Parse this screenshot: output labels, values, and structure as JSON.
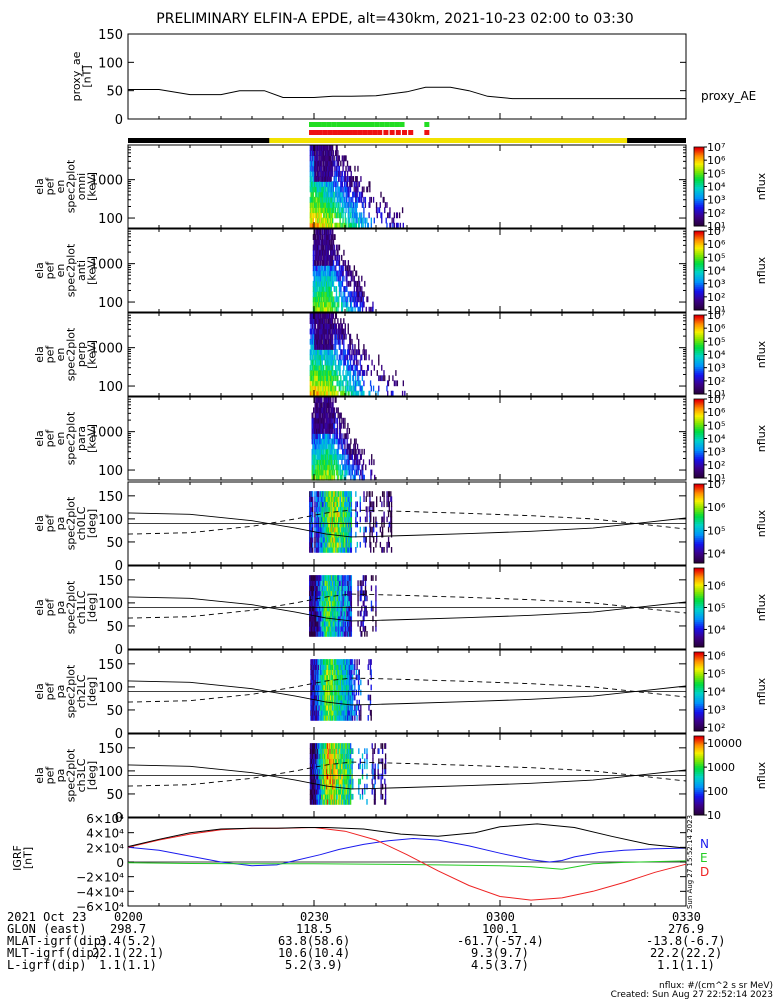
{
  "title": "PRELIMINARY ELFIN-A EPDE, alt=430km, 2021-10-23 02:00 to 03:30",
  "colors": {
    "ae_line": "#000000",
    "science_green": "#22dd22",
    "science_red": "#ee1111",
    "track_black": "#000000",
    "track_yellow": "#f2e200",
    "grf_N": "#1a1aee",
    "grf_E": "#22cc22",
    "grf_D": "#ee2222",
    "grf_total": "#000000"
  },
  "chart_data": [
    {
      "id": "proxy_ae",
      "type": "line",
      "ylabel": "proxy_ae [nT]",
      "legend": "proxy_AE",
      "ylim": [
        0,
        150
      ],
      "yticks": [
        "0",
        "50",
        "100",
        "150"
      ],
      "x_minutes": [
        0,
        5,
        10,
        15,
        18,
        22,
        25,
        30,
        33,
        36,
        40,
        45,
        48,
        52,
        55,
        58,
        62,
        68,
        75,
        90
      ],
      "values": [
        52,
        52,
        43,
        43,
        50,
        50,
        38,
        38,
        40,
        40,
        41,
        48,
        56,
        56,
        50,
        40,
        36,
        36,
        36,
        36
      ]
    },
    {
      "id": "science_zone_flags",
      "type": "scatter",
      "series": [
        {
          "name": "green",
          "x_minutes": [
            29.6,
            30.2,
            30.8,
            31.6,
            32.4,
            33.2,
            34.0,
            34.6,
            35.2,
            35.8,
            36.4,
            37.0,
            37.6,
            38.2,
            38.8,
            39.4,
            40.2,
            41.0,
            41.8,
            42.6,
            43.4,
            44.2,
            48.2
          ]
        },
        {
          "name": "red",
          "x_minutes": [
            29.6,
            30.3,
            31.0,
            31.8,
            32.6,
            33.4,
            34.2,
            35.0,
            35.8,
            36.6,
            37.4,
            38.2,
            39.0,
            39.8,
            40.6,
            41.6,
            42.6,
            43.6,
            44.6,
            45.6,
            48.2
          ]
        }
      ]
    },
    {
      "id": "orbit_track",
      "type": "bar",
      "segments": [
        {
          "from_min": 0,
          "to_min": 22.8,
          "state": "black"
        },
        {
          "from_min": 22.8,
          "to_min": 80.5,
          "state": "yellow"
        },
        {
          "from_min": 80.5,
          "to_min": 90,
          "state": "black"
        }
      ]
    },
    {
      "id": "omni",
      "type": "heatmap",
      "kind": "energy",
      "ylabel": [
        "ela",
        "pef",
        "en",
        "spec2plot",
        "omni",
        "[keV]"
      ],
      "yticks": [
        "100",
        "1000"
      ],
      "colorbar": {
        "label": "nflux",
        "ticks": [
          "10¹",
          "10²",
          "10³",
          "10⁴",
          "10⁵",
          "10⁶",
          "10⁷"
        ]
      },
      "t_start": 29.3,
      "t_end": 44.8,
      "x_minutes": [
        30,
        33,
        36,
        40,
        44
      ],
      "flux_log10": [
        6.2,
        5.4,
        4.1,
        2.8,
        1.8
      ]
    },
    {
      "id": "anti",
      "type": "heatmap",
      "kind": "energy",
      "ylabel": [
        "ela",
        "pef",
        "en",
        "spec2plot",
        "anti",
        "[keV]"
      ],
      "yticks": [
        "100",
        "1000"
      ],
      "colorbar": {
        "label": "nflux",
        "ticks": [
          "10¹",
          "10²",
          "10³",
          "10⁴",
          "10⁵",
          "10⁶",
          "10⁷"
        ]
      },
      "t_start": 29.8,
      "t_end": 39.5,
      "x_minutes": [
        30,
        32,
        34,
        36,
        39
      ],
      "flux_log10": [
        5.0,
        5.6,
        4.4,
        3.1,
        2.0
      ]
    },
    {
      "id": "perp",
      "type": "heatmap",
      "kind": "energy",
      "ylabel": [
        "ela",
        "pef",
        "en",
        "spec2plot",
        "perp",
        "[keV]"
      ],
      "yticks": [
        "100",
        "1000"
      ],
      "colorbar": {
        "label": "nflux",
        "ticks": [
          "10¹",
          "10²",
          "10³",
          "10⁴",
          "10⁵",
          "10⁶",
          "10⁷"
        ]
      },
      "t_start": 29.3,
      "t_end": 44.8,
      "x_minutes": [
        30,
        33,
        36,
        40,
        44
      ],
      "flux_log10": [
        6.0,
        5.5,
        4.0,
        2.7,
        1.8
      ]
    },
    {
      "id": "para",
      "type": "heatmap",
      "kind": "energy",
      "ylabel": [
        "ela",
        "pef",
        "en",
        "spec2plot",
        "para",
        "[keV]"
      ],
      "yticks": [
        "100",
        "1000"
      ],
      "colorbar": {
        "label": "nflux",
        "ticks": [
          "10¹",
          "10²",
          "10³",
          "10⁴",
          "10⁵",
          "10⁶",
          "10⁷"
        ]
      },
      "t_start": 29.6,
      "t_end": 39.8,
      "x_minutes": [
        30,
        32,
        34,
        36,
        39
      ],
      "flux_log10": [
        4.8,
        5.5,
        4.6,
        3.0,
        2.0
      ]
    },
    {
      "id": "ch0LC",
      "type": "heatmap",
      "kind": "pitch",
      "ylabel": [
        "ela",
        "pef",
        "pa",
        "spec2plot",
        "ch0LC",
        "[deg]"
      ],
      "yticks": [
        "0",
        "50",
        "100",
        "150"
      ],
      "colorbar": {
        "label": "nflux",
        "ticks": [
          "10⁴",
          "10⁵",
          "10⁶",
          "10⁷"
        ],
        "log_range": [
          3.6,
          7.0
        ]
      },
      "t_start": 29.2,
      "t_end": 42.5,
      "x_minutes": [
        30,
        33,
        36,
        39,
        42
      ],
      "flux_log10": [
        4.4,
        6.3,
        5.2,
        4.0,
        3.9
      ]
    },
    {
      "id": "ch1LC",
      "type": "heatmap",
      "kind": "pitch",
      "ylabel": [
        "ela",
        "pef",
        "pa",
        "spec2plot",
        "ch1LC",
        "[deg]"
      ],
      "yticks": [
        "0",
        "50",
        "100",
        "150"
      ],
      "colorbar": {
        "label": "nflux",
        "ticks": [
          "10⁴",
          "10⁵",
          "10⁶"
        ],
        "log_range": [
          3.2,
          6.8
        ]
      },
      "t_start": 29.2,
      "t_end": 40.5,
      "x_minutes": [
        30,
        32,
        34,
        37,
        40
      ],
      "flux_log10": [
        3.6,
        5.6,
        4.8,
        3.8,
        3.4
      ]
    },
    {
      "id": "ch2LC",
      "type": "heatmap",
      "kind": "pitch",
      "ylabel": [
        "ela",
        "pef",
        "pa",
        "spec2plot",
        "ch2LC",
        "[deg]"
      ],
      "yticks": [
        "0",
        "50",
        "100",
        "150"
      ],
      "colorbar": {
        "label": "nflux",
        "ticks": [
          "10²",
          "10³",
          "10⁴",
          "10⁵",
          "10⁶"
        ],
        "log_range": [
          1.8,
          6.2
        ]
      },
      "t_start": 29.4,
      "t_end": 39.2,
      "x_minutes": [
        30,
        32,
        34,
        37,
        39
      ],
      "flux_log10": [
        2.6,
        5.0,
        4.2,
        3.0,
        2.6
      ]
    },
    {
      "id": "ch3LC",
      "type": "heatmap",
      "kind": "pitch",
      "ylabel": [
        "ela",
        "pef",
        "pa",
        "spec2plot",
        "ch3LC",
        "[deg]"
      ],
      "yticks": [
        "0",
        "50",
        "100",
        "150"
      ],
      "colorbar": {
        "label": "nflux",
        "ticks": [
          "10",
          "100",
          "1000",
          "10000"
        ],
        "log_range": [
          1.0,
          4.3
        ]
      },
      "t_start": 29.2,
      "t_end": 41.5,
      "x_minutes": [
        30,
        32,
        35,
        38,
        41
      ],
      "flux_log10": [
        1.3,
        3.9,
        3.1,
        2.2,
        1.3
      ]
    },
    {
      "id": "loss_cone_curves",
      "type": "line",
      "series": [
        {
          "name": "loss_cone",
          "x_minutes": [
            0,
            10,
            20,
            27,
            32,
            36,
            40,
            45,
            55,
            65,
            75,
            90
          ],
          "values": [
            113,
            110,
            96,
            80,
            67,
            61,
            62,
            64,
            68,
            73,
            80,
            102
          ]
        },
        {
          "name": "anti_loss_cone",
          "x_minutes": [
            0,
            10,
            20,
            27,
            32,
            36,
            40,
            45,
            55,
            65,
            75,
            90
          ],
          "values": [
            67,
            70,
            84,
            100,
            113,
            119,
            118,
            116,
            112,
            107,
            100,
            78
          ]
        }
      ]
    },
    {
      "id": "igrf",
      "type": "line",
      "ylabel": [
        "IGRF",
        "[nT]"
      ],
      "yticks": [
        "6×10⁴",
        "4×10⁴",
        "2×10⁴",
        "0",
        "−2×10⁴",
        "−4×10⁴",
        "−6×10⁴"
      ],
      "ylim": [
        -60000,
        60000
      ],
      "legend": [
        "N",
        "E",
        "D"
      ],
      "series": [
        {
          "name": "N",
          "x_minutes": [
            0,
            5,
            10,
            15,
            20,
            24,
            27,
            31,
            34,
            38,
            42,
            46,
            50,
            55,
            60,
            65,
            68,
            70,
            72,
            76,
            80,
            85,
            90
          ],
          "values": [
            20000,
            16000,
            8000,
            0,
            -5000,
            -4000,
            2000,
            10000,
            17000,
            24000,
            29000,
            32000,
            30000,
            22000,
            12000,
            3000,
            0,
            2000,
            7000,
            13000,
            16000,
            18000,
            19000
          ]
        },
        {
          "name": "E",
          "x_minutes": [
            0,
            10,
            20,
            30,
            40,
            50,
            60,
            65,
            70,
            75,
            80,
            85,
            90
          ],
          "values": [
            -1000,
            -2000,
            -2500,
            -2500,
            -3000,
            -4000,
            -5000,
            -6500,
            -10000,
            -2500,
            -500,
            500,
            1500
          ]
        },
        {
          "name": "D",
          "x_minutes": [
            0,
            5,
            10,
            15,
            20,
            25,
            30,
            35,
            40,
            45,
            50,
            55,
            60,
            65,
            70,
            75,
            80,
            85,
            90
          ],
          "values": [
            20000,
            30000,
            38000,
            44000,
            46000,
            46000,
            47000,
            42000,
            30000,
            10000,
            -12000,
            -32000,
            -47000,
            -52000,
            -49000,
            -40000,
            -28000,
            -14000,
            -3000
          ]
        },
        {
          "name": "total",
          "x_minutes": [
            0,
            5,
            10,
            15,
            20,
            24,
            28,
            32,
            38,
            44,
            50,
            56,
            60,
            66,
            72,
            78,
            84,
            90
          ],
          "values": [
            21000,
            31000,
            40000,
            45000,
            46000,
            46000,
            47000,
            47000,
            45000,
            38000,
            35000,
            40000,
            48000,
            52000,
            47000,
            35000,
            24000,
            19000
          ]
        }
      ]
    }
  ],
  "x_axis": {
    "row_labels": [
      "2021 Oct 23",
      "GLON (east)",
      "MLAT-igrf(dip)",
      "MLT-igrf(dip)",
      "L-igrf(dip)"
    ],
    "columns": [
      {
        "minutes": 0,
        "values": [
          "0200",
          "298.7",
          "3.4(5.2)",
          "22.1(22.1)",
          "1.1(1.1)"
        ]
      },
      {
        "minutes": 30,
        "values": [
          "0230",
          "118.5",
          "63.8(58.6)",
          "10.6(10.4)",
          "5.2(3.9)"
        ]
      },
      {
        "minutes": 60,
        "values": [
          "0300",
          "100.1",
          "-61.7(-57.4)",
          "9.3(9.7)",
          "4.5(3.7)"
        ]
      },
      {
        "minutes": 90,
        "values": [
          "0330",
          "276.9",
          "-13.8(-6.7)",
          "22.2(22.2)",
          "1.1(1.1)"
        ]
      }
    ]
  },
  "side_stamp": "Sun Aug 27 15:52:14 2023",
  "credits": {
    "units": "nflux: #/(cm^2 s sr MeV)",
    "created": "Created: Sun Aug 27 22:52:14 2023"
  }
}
